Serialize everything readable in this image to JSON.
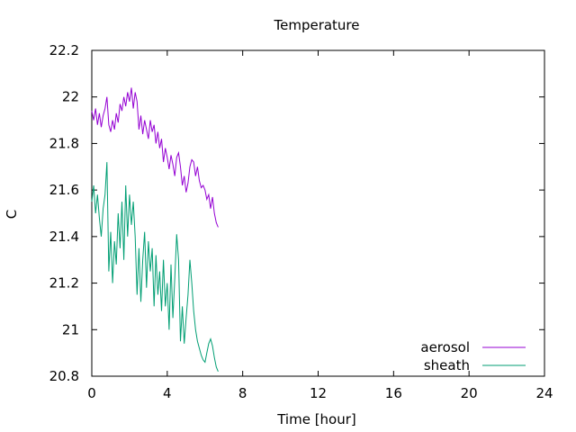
{
  "chart_data": {
    "type": "line",
    "title": "Temperature",
    "xlabel": "Time [hour]",
    "ylabel": "C",
    "xlim": [
      0,
      24
    ],
    "ylim": [
      20.8,
      22.2
    ],
    "xticks": [
      "0",
      "4",
      "8",
      "12",
      "16",
      "20",
      "24"
    ],
    "yticks": [
      "20.8",
      "21",
      "21.2",
      "21.4",
      "21.6",
      "21.8",
      "22",
      "22.2"
    ],
    "grid": false,
    "legend_position": "bottom-right",
    "series": [
      {
        "name": "aerosol",
        "color": "#9400d3",
        "x": [
          0,
          0.1,
          0.2,
          0.3,
          0.4,
          0.5,
          0.6,
          0.7,
          0.8,
          0.9,
          1.0,
          1.1,
          1.2,
          1.3,
          1.4,
          1.5,
          1.6,
          1.7,
          1.8,
          1.9,
          2.0,
          2.1,
          2.2,
          2.3,
          2.4,
          2.5,
          2.6,
          2.7,
          2.8,
          2.9,
          3.0,
          3.1,
          3.2,
          3.3,
          3.4,
          3.5,
          3.6,
          3.7,
          3.8,
          3.9,
          4.0,
          4.1,
          4.2,
          4.3,
          4.4,
          4.5,
          4.6,
          4.7,
          4.8,
          4.9,
          5.0,
          5.1,
          5.2,
          5.3,
          5.4,
          5.5,
          5.6,
          5.7,
          5.8,
          5.9,
          6.0,
          6.1,
          6.2,
          6.3,
          6.4,
          6.5,
          6.6,
          6.7
        ],
        "values": [
          21.94,
          21.9,
          21.95,
          21.88,
          21.93,
          21.87,
          21.92,
          21.95,
          22.0,
          21.88,
          21.85,
          21.9,
          21.86,
          21.93,
          21.89,
          21.97,
          21.94,
          22.0,
          21.96,
          22.02,
          21.98,
          22.04,
          21.95,
          22.02,
          21.98,
          21.86,
          21.92,
          21.84,
          21.9,
          21.86,
          21.82,
          21.9,
          21.85,
          21.88,
          21.8,
          21.85,
          21.78,
          21.82,
          21.72,
          21.78,
          21.74,
          21.69,
          21.75,
          21.71,
          21.66,
          21.74,
          21.76,
          21.7,
          21.62,
          21.66,
          21.59,
          21.63,
          21.7,
          21.73,
          21.72,
          21.66,
          21.7,
          21.64,
          21.61,
          21.62,
          21.6,
          21.56,
          21.58,
          21.52,
          21.57,
          21.5,
          21.46,
          21.44
        ]
      },
      {
        "name": "sheath",
        "color": "#009e73",
        "x": [
          0,
          0.1,
          0.2,
          0.3,
          0.4,
          0.5,
          0.6,
          0.7,
          0.8,
          0.9,
          1.0,
          1.1,
          1.2,
          1.3,
          1.4,
          1.5,
          1.6,
          1.7,
          1.8,
          1.9,
          2.0,
          2.1,
          2.2,
          2.3,
          2.4,
          2.5,
          2.6,
          2.7,
          2.8,
          2.9,
          3.0,
          3.1,
          3.2,
          3.3,
          3.4,
          3.5,
          3.6,
          3.7,
          3.8,
          3.9,
          4.0,
          4.1,
          4.2,
          4.3,
          4.4,
          4.5,
          4.6,
          4.7,
          4.8,
          4.9,
          5.0,
          5.1,
          5.2,
          5.3,
          5.4,
          5.5,
          5.6,
          5.7,
          5.8,
          5.9,
          6.0,
          6.1,
          6.2,
          6.3,
          6.4,
          6.5,
          6.6,
          6.7
        ],
        "values": [
          21.55,
          21.62,
          21.5,
          21.58,
          21.48,
          21.4,
          21.52,
          21.58,
          21.72,
          21.25,
          21.42,
          21.2,
          21.38,
          21.28,
          21.5,
          21.35,
          21.55,
          21.3,
          21.62,
          21.4,
          21.58,
          21.45,
          21.55,
          21.4,
          21.15,
          21.35,
          21.12,
          21.3,
          21.42,
          21.18,
          21.38,
          21.25,
          21.35,
          21.1,
          21.32,
          21.15,
          21.25,
          21.08,
          21.3,
          21.1,
          21.2,
          21.0,
          21.28,
          21.05,
          21.22,
          21.41,
          21.3,
          20.95,
          21.1,
          20.94,
          21.05,
          21.15,
          21.3,
          21.2,
          21.08,
          21.0,
          20.95,
          20.92,
          20.89,
          20.87,
          20.86,
          20.9,
          20.94,
          20.96,
          20.93,
          20.88,
          20.84,
          20.82
        ]
      }
    ]
  }
}
